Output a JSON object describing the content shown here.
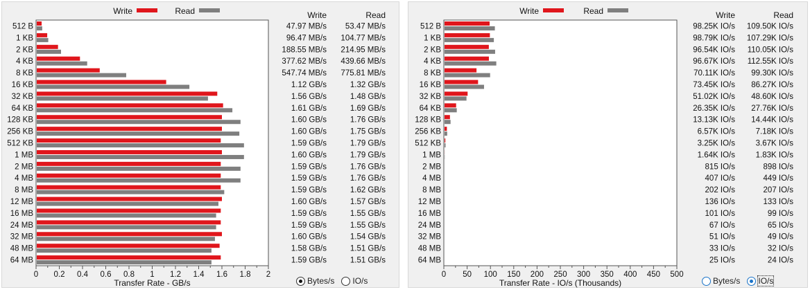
{
  "colors": {
    "write": "#e0161c",
    "read": "#7f7f7f",
    "radio_accent": "#1a73c8"
  },
  "legend": {
    "write": "Write",
    "read": "Read"
  },
  "column_headers": {
    "write": "Write",
    "read": "Read"
  },
  "chart_data": [
    {
      "type": "bar",
      "orientation": "horizontal",
      "categories": [
        "512 B",
        "1 KB",
        "2 KB",
        "4 KB",
        "8 KB",
        "16 KB",
        "32 KB",
        "64 KB",
        "128 KB",
        "256 KB",
        "512 KB",
        "1 MB",
        "2 MB",
        "4 MB",
        "8 MB",
        "12 MB",
        "16 MB",
        "24 MB",
        "32 MB",
        "48 MB",
        "64 MB"
      ],
      "series": [
        {
          "name": "Write",
          "values": [
            0.048,
            0.096,
            0.189,
            0.378,
            0.548,
            1.12,
            1.56,
            1.61,
            1.6,
            1.6,
            1.59,
            1.6,
            1.59,
            1.59,
            1.59,
            1.6,
            1.59,
            1.59,
            1.6,
            1.58,
            1.59
          ]
        },
        {
          "name": "Read",
          "values": [
            0.053,
            0.105,
            0.215,
            0.44,
            0.776,
            1.32,
            1.48,
            1.69,
            1.76,
            1.75,
            1.79,
            1.79,
            1.76,
            1.76,
            1.62,
            1.57,
            1.55,
            1.55,
            1.54,
            1.51,
            1.51
          ]
        }
      ],
      "xlabel": "Transfer Rate - GB/s",
      "xlim": [
        0,
        2
      ],
      "xticks": [
        "0",
        "0.2",
        "0.4",
        "0.6",
        "0.8",
        "1",
        "1.2",
        "1.4",
        "1.6",
        "1.8",
        "2"
      ],
      "legend_position": "top",
      "table": {
        "write": [
          "47.97 MB/s",
          "96.47 MB/s",
          "188.55 MB/s",
          "377.62 MB/s",
          "547.74 MB/s",
          "1.12 GB/s",
          "1.56 GB/s",
          "1.61 GB/s",
          "1.60 GB/s",
          "1.60 GB/s",
          "1.59 GB/s",
          "1.60 GB/s",
          "1.59 GB/s",
          "1.59 GB/s",
          "1.59 GB/s",
          "1.60 GB/s",
          "1.59 GB/s",
          "1.59 GB/s",
          "1.60 GB/s",
          "1.58 GB/s",
          "1.59 GB/s"
        ],
        "read": [
          "53.47 MB/s",
          "104.77 MB/s",
          "214.95 MB/s",
          "439.66 MB/s",
          "775.81 MB/s",
          "1.32 GB/s",
          "1.48 GB/s",
          "1.69 GB/s",
          "1.76 GB/s",
          "1.75 GB/s",
          "1.79 GB/s",
          "1.79 GB/s",
          "1.76 GB/s",
          "1.76 GB/s",
          "1.62 GB/s",
          "1.57 GB/s",
          "1.55 GB/s",
          "1.55 GB/s",
          "1.54 GB/s",
          "1.51 GB/s",
          "1.51 GB/s"
        ]
      }
    },
    {
      "type": "bar",
      "orientation": "horizontal",
      "categories": [
        "512 B",
        "1 KB",
        "2 KB",
        "4 KB",
        "8 KB",
        "16 KB",
        "32 KB",
        "64 KB",
        "128 KB",
        "256 KB",
        "512 KB",
        "1 MB",
        "2 MB",
        "4 MB",
        "8 MB",
        "12 MB",
        "16 MB",
        "24 MB",
        "32 MB",
        "48 MB",
        "64 MB"
      ],
      "series": [
        {
          "name": "Write",
          "values": [
            98.25,
            98.79,
            96.54,
            96.67,
            70.11,
            73.45,
            51.02,
            26.35,
            13.13,
            6.57,
            3.25,
            1.64,
            0.815,
            0.407,
            0.202,
            0.136,
            0.101,
            0.067,
            0.051,
            0.033,
            0.025
          ]
        },
        {
          "name": "Read",
          "values": [
            109.5,
            107.29,
            110.05,
            112.55,
            99.3,
            86.27,
            48.6,
            27.76,
            14.44,
            7.18,
            3.67,
            1.83,
            0.898,
            0.449,
            0.207,
            0.133,
            0.099,
            0.065,
            0.049,
            0.032,
            0.024
          ]
        }
      ],
      "xlabel": "Transfer Rate - IO/s (Thousands)",
      "xlim": [
        0,
        500
      ],
      "xticks": [
        "0",
        "50",
        "100",
        "150",
        "200",
        "250",
        "300",
        "350",
        "400",
        "450",
        "500"
      ],
      "legend_position": "top",
      "table": {
        "write": [
          "98.25K IO/s",
          "98.79K IO/s",
          "96.54K IO/s",
          "96.67K IO/s",
          "70.11K IO/s",
          "73.45K IO/s",
          "51.02K IO/s",
          "26.35K IO/s",
          "13.13K IO/s",
          "6.57K IO/s",
          "3.25K IO/s",
          "1.64K IO/s",
          "815 IO/s",
          "407 IO/s",
          "202 IO/s",
          "136 IO/s",
          "101 IO/s",
          "67 IO/s",
          "51 IO/s",
          "33 IO/s",
          "25 IO/s"
        ],
        "read": [
          "109.50K IO/s",
          "107.29K IO/s",
          "110.05K IO/s",
          "112.55K IO/s",
          "99.30K IO/s",
          "86.27K IO/s",
          "48.60K IO/s",
          "27.76K IO/s",
          "14.44K IO/s",
          "7.18K IO/s",
          "3.67K IO/s",
          "1.83K IO/s",
          "898 IO/s",
          "449 IO/s",
          "207 IO/s",
          "133 IO/s",
          "99 IO/s",
          "65 IO/s",
          "49 IO/s",
          "32 IO/s",
          "24 IO/s"
        ]
      }
    }
  ],
  "radios": {
    "left": [
      {
        "label": "Bytes/s",
        "checked": true
      },
      {
        "label": "IO/s",
        "checked": false
      }
    ],
    "right": [
      {
        "label": "Bytes/s",
        "checked": false
      },
      {
        "label": "IO/s",
        "checked": true
      }
    ]
  }
}
